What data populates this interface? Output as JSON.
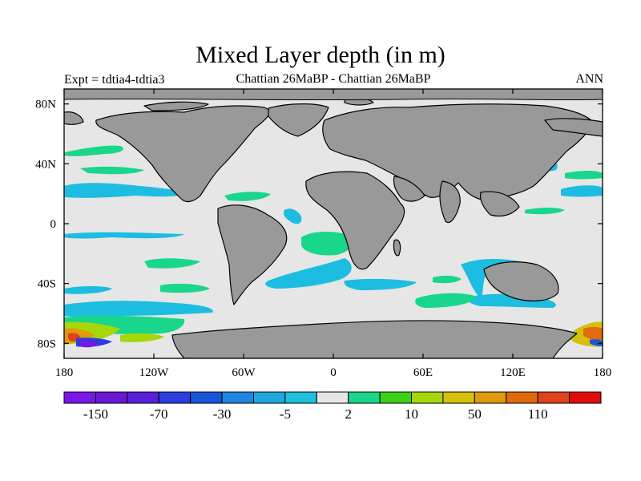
{
  "title": "Mixed Layer depth (in m)",
  "left_string": "Expt = tdtia4-tdtia3",
  "center_string": "Chattian  26MaBP - Chattian  26MaBP",
  "right_string": "ANN",
  "lat_ticks": [
    "80N",
    "40N",
    "0",
    "40S",
    "80S"
  ],
  "lon_ticks": [
    "180",
    "120W",
    "60W",
    "0",
    "60E",
    "120E",
    "180"
  ],
  "colorbar": {
    "colors": [
      "#7a17e8",
      "#6a17d6",
      "#5a1fd8",
      "#2c3ce0",
      "#1557da",
      "#1f86e0",
      "#1ea6e0",
      "#1cc0e0",
      "#e6e6e6",
      "#18d68a",
      "#3ad018",
      "#a6d60c",
      "#d6c00c",
      "#e09a0c",
      "#e06a0c",
      "#e0421c",
      "#e00c0c"
    ],
    "labels": [
      "-150",
      "-70",
      "-30",
      "-5",
      "2",
      "10",
      "50",
      "110"
    ]
  },
  "colors": {
    "ocean": "#e6e6e6",
    "land": "#999999",
    "cyan": "#1cbde0",
    "green": "#18d68a"
  }
}
